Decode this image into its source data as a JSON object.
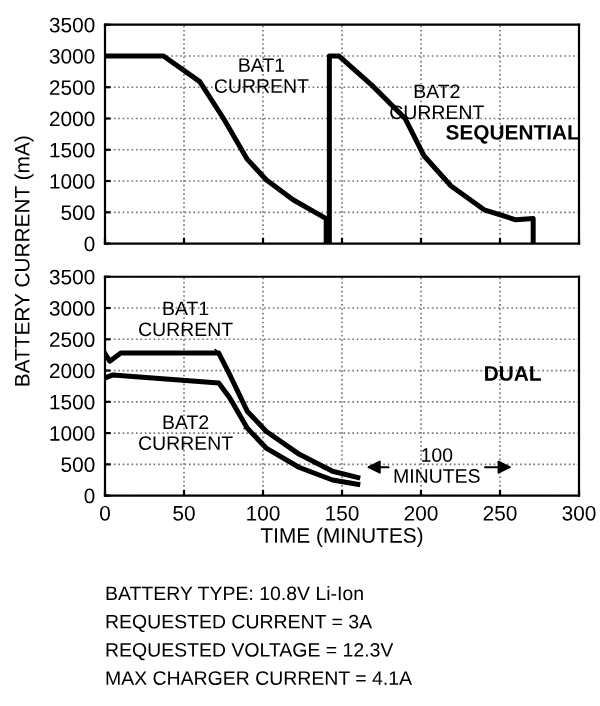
{
  "chart_data": [
    {
      "type": "line",
      "ylabel": "BATTERY CURRENT (mA)",
      "xlim": [
        0,
        300
      ],
      "ylim": [
        0,
        3500
      ],
      "xticks": [
        0,
        50,
        100,
        150,
        200,
        250,
        300
      ],
      "yticks": [
        0,
        500,
        1000,
        1500,
        2000,
        2500,
        3000,
        3500
      ],
      "grid": true,
      "tick_labels": "y",
      "annotations": [
        "SEQUENTIAL"
      ],
      "series": [
        {
          "name": "BAT1 CURRENT",
          "color": "#000000",
          "x": [
            0,
            37,
            60,
            75,
            90,
            102,
            119,
            140,
            140
          ],
          "values": [
            3000,
            3000,
            2590,
            2000,
            1350,
            1020,
            700,
            400,
            0
          ]
        },
        {
          "name": "BAT2 CURRENT",
          "color": "#000000",
          "x": [
            142,
            142,
            148,
            169,
            190,
            202,
            219,
            240,
            260,
            271,
            271
          ],
          "values": [
            0,
            3000,
            3000,
            2530,
            2000,
            1400,
            920,
            540,
            380,
            400,
            0
          ]
        }
      ]
    },
    {
      "type": "line",
      "xlabel": "TIME (MINUTES)",
      "xlim": [
        0,
        300
      ],
      "ylim": [
        0,
        3500
      ],
      "xticks": [
        0,
        50,
        100,
        150,
        200,
        250,
        300
      ],
      "yticks": [
        0,
        500,
        1000,
        1500,
        2000,
        2500,
        3000,
        3500
      ],
      "grid": true,
      "annotations": [
        "DUAL",
        "100 MINUTES",
        "BATTERY TYPE: 10.8V Li-Ion",
        "REQUESTED CURRENT = 3A",
        "REQUESTED VOLTAGE = 12.3V",
        "MAX CHARGER CURRENT = 4.1A"
      ],
      "series": [
        {
          "name": "BAT1 CURRENT",
          "color": "#000000",
          "x": [
            0,
            3,
            10,
            72,
            79,
            90,
            102,
            123,
            144,
            160
          ],
          "values": [
            2270,
            2150,
            2280,
            2280,
            1930,
            1350,
            1030,
            660,
            390,
            290
          ]
        },
        {
          "name": "BAT2 CURRENT",
          "color": "#000000",
          "x": [
            0,
            5,
            72,
            79,
            90,
            102,
            123,
            144,
            160
          ],
          "values": [
            1880,
            1930,
            1800,
            1560,
            1080,
            760,
            450,
            250,
            180
          ]
        }
      ]
    }
  ]
}
